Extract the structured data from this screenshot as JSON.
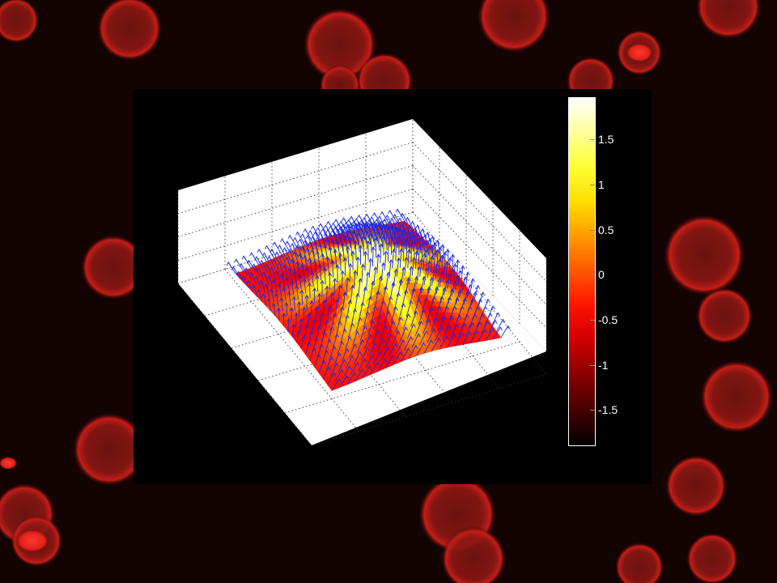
{
  "colors": {
    "background": "#000000",
    "cells": "#d01a14",
    "box_walls": "#ffffff",
    "grid": "#333333",
    "arrows": "#1a28e6"
  },
  "colorbar": {
    "colormap": "hot",
    "ticks": [
      {
        "value": 1.5,
        "label": "1.5"
      },
      {
        "value": 1,
        "label": "1"
      },
      {
        "value": 0.5,
        "label": "0.5"
      },
      {
        "value": 0,
        "label": "0"
      },
      {
        "value": -0.5,
        "label": "-0.5"
      },
      {
        "value": -1,
        "label": "-1"
      },
      {
        "value": -1.5,
        "label": "-1.5"
      }
    ],
    "range": [
      -1.95,
      1.95
    ]
  },
  "icons": {
    "background": "red-fluorescent-cells-image",
    "surface": "3d-surface-with-vector-arrows"
  }
}
